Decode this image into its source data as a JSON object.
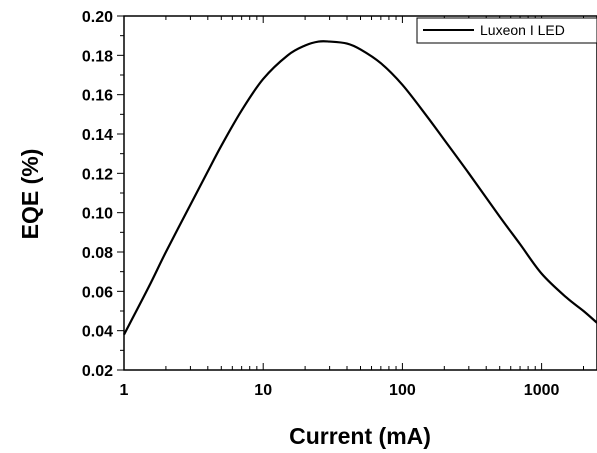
{
  "chart_data": {
    "type": "line",
    "title": "",
    "xlabel": "Current (mA)",
    "ylabel": "EQE (%)",
    "x_scale": "log",
    "xlim": [
      1,
      2500
    ],
    "ylim": [
      0.02,
      0.2
    ],
    "grid": false,
    "legend_position": "top-right",
    "x_ticks": [
      1,
      10,
      100,
      1000
    ],
    "x_tick_labels": [
      "1",
      "10",
      "100",
      "1000"
    ],
    "y_ticks": [
      0.02,
      0.04,
      0.06,
      0.08,
      0.1,
      0.12,
      0.14,
      0.16,
      0.18,
      0.2
    ],
    "y_tick_labels": [
      "0.02",
      "0.04",
      "0.06",
      "0.08",
      "0.10",
      "0.12",
      "0.14",
      "0.16",
      "0.18",
      "0.20"
    ],
    "series": [
      {
        "name": "Luxeon I LED",
        "color": "#000000",
        "x": [
          1,
          1.5,
          2,
          3,
          4,
          5,
          7,
          10,
          15,
          20,
          25,
          30,
          40,
          50,
          70,
          100,
          150,
          200,
          300,
          500,
          700,
          1000,
          1500,
          2000,
          2500
        ],
        "y": [
          0.038,
          0.062,
          0.08,
          0.104,
          0.121,
          0.134,
          0.152,
          0.168,
          0.18,
          0.185,
          0.187,
          0.187,
          0.186,
          0.183,
          0.176,
          0.165,
          0.149,
          0.137,
          0.12,
          0.098,
          0.084,
          0.069,
          0.057,
          0.05,
          0.044
        ]
      }
    ]
  }
}
